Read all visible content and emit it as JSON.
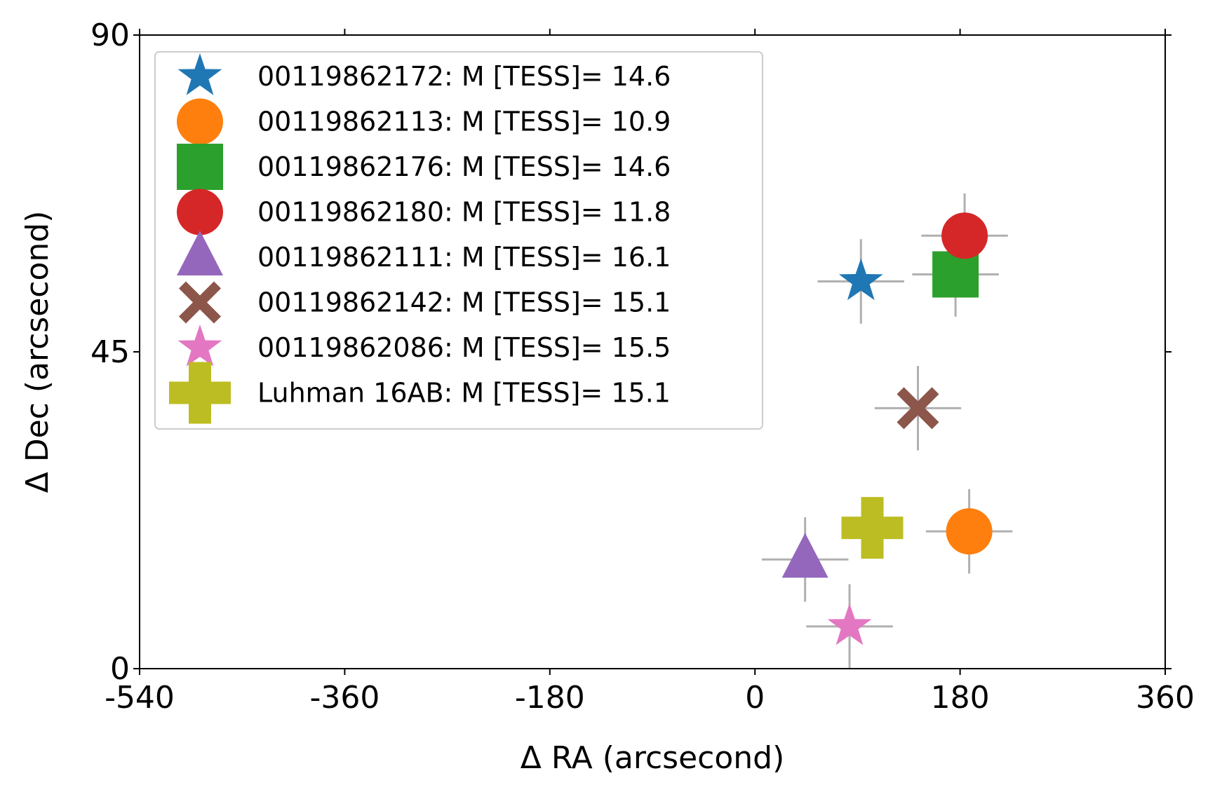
{
  "chart_data": {
    "type": "scatter",
    "xlabel": "Δ RA (arcsecond)",
    "ylabel": "Δ Dec (arcsecond)",
    "xlim": [
      -540,
      360
    ],
    "ylim": [
      0,
      90
    ],
    "xticks": [
      "-540",
      "-360",
      "-180",
      "0",
      "180",
      "360"
    ],
    "yticks": [
      "0",
      "45",
      "90"
    ],
    "grid": false,
    "legend_position": "upper-left",
    "series": [
      {
        "name": "00119862172: M [TESS]= 14.6",
        "marker": "star",
        "color": "#1f77b4",
        "x": 93,
        "y": 55,
        "xerr": 38,
        "yerr": 6
      },
      {
        "name": "00119862113: M [TESS]= 10.9",
        "marker": "circle",
        "color": "#ff7f0e",
        "x": 188,
        "y": 19.5,
        "xerr": 38,
        "yerr": 6
      },
      {
        "name": "00119862176: M [TESS]= 14.6",
        "marker": "square",
        "color": "#2ca02c",
        "x": 176,
        "y": 56,
        "xerr": 38,
        "yerr": 6
      },
      {
        "name": "00119862180: M [TESS]= 11.8",
        "marker": "circle",
        "color": "#d62728",
        "x": 184,
        "y": 61.5,
        "xerr": 38,
        "yerr": 6
      },
      {
        "name": "00119862111: M [TESS]= 16.1",
        "marker": "triangle",
        "color": "#9467bd",
        "x": 44,
        "y": 15.5,
        "xerr": 38,
        "yerr": 6
      },
      {
        "name": "00119862142: M [TESS]= 15.1",
        "marker": "x",
        "color": "#8c564b",
        "x": 143,
        "y": 37,
        "xerr": 38,
        "yerr": 6
      },
      {
        "name": "00119862086: M [TESS]= 15.5",
        "marker": "star",
        "color": "#e377c2",
        "x": 83,
        "y": 6,
        "xerr": 38,
        "yerr": 6
      },
      {
        "name": "Luhman 16AB: M [TESS]= 15.1",
        "marker": "plus",
        "color": "#bcbd22",
        "x": 103,
        "y": 20,
        "xerr": 0,
        "yerr": 0
      }
    ]
  }
}
